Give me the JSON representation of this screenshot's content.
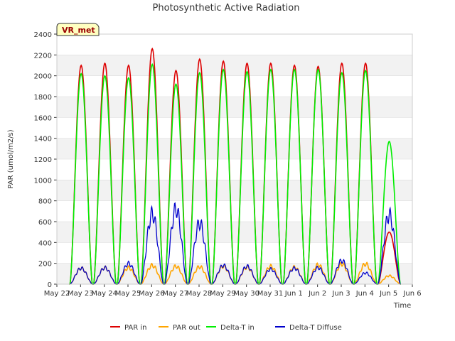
{
  "chart_data": {
    "type": "line",
    "title": "Photosynthetic Active Radiation",
    "xlabel": "Time",
    "ylabel": "PAR (umol/m2/s)",
    "ylim": [
      0,
      2400
    ],
    "yticks": [
      0,
      200,
      400,
      600,
      800,
      1000,
      1200,
      1400,
      1600,
      1800,
      2000,
      2200,
      2400
    ],
    "xlim": [
      0,
      15
    ],
    "xtick_labels": [
      "May 22",
      "May 23",
      "May 24",
      "May 25",
      "May 26",
      "May 27",
      "May 28",
      "May 29",
      "May 30",
      "May 31",
      "Jun 1",
      "Jun 2",
      "Jun 3",
      "Jun 4",
      "Jun 5",
      "Jun 6"
    ],
    "station_label": "VR_met",
    "grid": "horizontal bands",
    "legend_position": "bottom",
    "series": [
      {
        "name": "PAR in",
        "color": "#dd0000",
        "daily_peaks": [
          2100,
          2120,
          2100,
          2260,
          2050,
          2160,
          2140,
          2120,
          2120,
          2100,
          2090,
          2120,
          2120,
          500
        ]
      },
      {
        "name": "PAR out",
        "color": "#ffa500",
        "daily_peaks": [
          170,
          175,
          175,
          200,
          190,
          185,
          190,
          180,
          190,
          180,
          205,
          215,
          215,
          90
        ]
      },
      {
        "name": "Delta-T in",
        "color": "#00ee00",
        "daily_peaks": [
          2020,
          2000,
          1980,
          2110,
          1920,
          2030,
          2060,
          2040,
          2060,
          2060,
          2060,
          2030,
          2050,
          1370
        ]
      },
      {
        "name": "Delta-T Diffuse",
        "color": "#0000cc",
        "daily_peaks": [
          170,
          175,
          220,
          750,
          800,
          650,
          200,
          190,
          160,
          170,
          175,
          250,
          120,
          740
        ]
      }
    ]
  }
}
